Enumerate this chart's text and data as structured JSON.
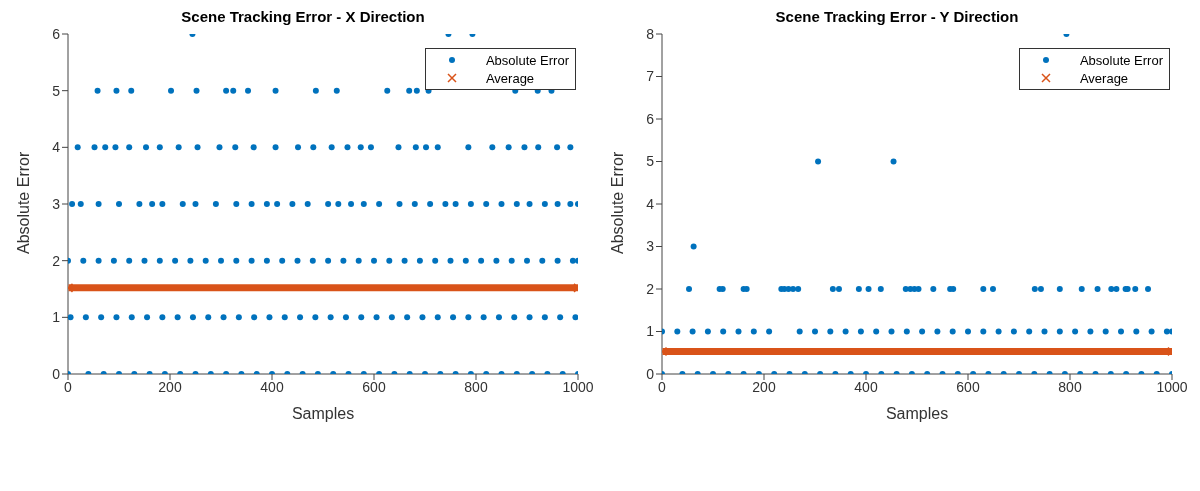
{
  "chart_data": [
    {
      "type": "scatter",
      "title": "Scene Tracking Error - X Direction",
      "xlabel": "Samples",
      "ylabel": "Absolute Error",
      "xlim": [
        0,
        1000
      ],
      "xticks": [
        0,
        200,
        400,
        600,
        800,
        1000
      ],
      "ylim": [
        0,
        6
      ],
      "yticks": [
        0,
        1,
        2,
        3,
        4,
        5,
        6
      ],
      "grid": false,
      "legend": "top right",
      "series": [
        {
          "name": "Absolute Error",
          "color": "#0072bd",
          "marker": "circle",
          "x": [
            244,
            746,
            793,
            58,
            95,
            124,
            202,
            252,
            310,
            324,
            353,
            407,
            486,
            527,
            626,
            669,
            684,
            707,
            877,
            921,
            948,
            19,
            52,
            73,
            93,
            120,
            153,
            180,
            217,
            254,
            297,
            328,
            364,
            407,
            451,
            481,
            517,
            548,
            574,
            594,
            648,
            682,
            702,
            725,
            785,
            832,
            864,
            895,
            922,
            959,
            985,
            8,
            25,
            60,
            100,
            140,
            165,
            185,
            225,
            250,
            290,
            330,
            360,
            390,
            410,
            440,
            470,
            510,
            530,
            555,
            580,
            610,
            650,
            680,
            710,
            740,
            760,
            790,
            820,
            850,
            880,
            905,
            935,
            960,
            985,
            1000,
            0,
            30,
            60,
            90,
            120,
            150,
            180,
            210,
            240,
            270,
            300,
            330,
            360,
            390,
            420,
            450,
            480,
            510,
            540,
            570,
            600,
            630,
            660,
            690,
            720,
            750,
            780,
            810,
            840,
            870,
            900,
            930,
            960,
            990,
            1000,
            5,
            35,
            65,
            95,
            125,
            155,
            185,
            215,
            245,
            275,
            305,
            335,
            365,
            395,
            425,
            455,
            485,
            515,
            545,
            575,
            605,
            635,
            665,
            695,
            725,
            755,
            785,
            815,
            845,
            875,
            905,
            935,
            965,
            995,
            0,
            40,
            70,
            100,
            130,
            160,
            190,
            220,
            250,
            280,
            310,
            340,
            370,
            400,
            430,
            460,
            490,
            520,
            550,
            580,
            610,
            640,
            670,
            700,
            730,
            760,
            790,
            820,
            850,
            880,
            910,
            940,
            970,
            1000
          ],
          "values": [
            6,
            6,
            6,
            5,
            5,
            5,
            5,
            5,
            5,
            5,
            5,
            5,
            5,
            5,
            5,
            5,
            5,
            5,
            5,
            5,
            5,
            4,
            4,
            4,
            4,
            4,
            4,
            4,
            4,
            4,
            4,
            4,
            4,
            4,
            4,
            4,
            4,
            4,
            4,
            4,
            4,
            4,
            4,
            4,
            4,
            4,
            4,
            4,
            4,
            4,
            4,
            3,
            3,
            3,
            3,
            3,
            3,
            3,
            3,
            3,
            3,
            3,
            3,
            3,
            3,
            3,
            3,
            3,
            3,
            3,
            3,
            3,
            3,
            3,
            3,
            3,
            3,
            3,
            3,
            3,
            3,
            3,
            3,
            3,
            3,
            3,
            2,
            2,
            2,
            2,
            2,
            2,
            2,
            2,
            2,
            2,
            2,
            2,
            2,
            2,
            2,
            2,
            2,
            2,
            2,
            2,
            2,
            2,
            2,
            2,
            2,
            2,
            2,
            2,
            2,
            2,
            2,
            2,
            2,
            2,
            2,
            1,
            1,
            1,
            1,
            1,
            1,
            1,
            1,
            1,
            1,
            1,
            1,
            1,
            1,
            1,
            1,
            1,
            1,
            1,
            1,
            1,
            1,
            1,
            1,
            1,
            1,
            1,
            1,
            1,
            1,
            1,
            1,
            1,
            1,
            0,
            0,
            0,
            0,
            0,
            0,
            0,
            0,
            0,
            0,
            0,
            0,
            0,
            0,
            0,
            0,
            0,
            0,
            0,
            0,
            0,
            0,
            0,
            0,
            0,
            0,
            0,
            0,
            0,
            0,
            0,
            0,
            0,
            0
          ]
        },
        {
          "name": "Average",
          "color": "#d95319",
          "type": "line",
          "marker": "cross",
          "line_style": "solid",
          "x": [
            1,
            1000
          ],
          "values": [
            1.52,
            1.52
          ]
        }
      ]
    },
    {
      "type": "scatter",
      "title": "Scene Tracking Error - Y Direction",
      "xlabel": "Samples",
      "ylabel": "Absolute Error",
      "xlim": [
        0,
        1000
      ],
      "xticks": [
        0,
        200,
        400,
        600,
        800,
        1000
      ],
      "ylim": [
        0,
        8
      ],
      "yticks": [
        0,
        1,
        2,
        3,
        4,
        5,
        6,
        7,
        8
      ],
      "grid": false,
      "legend": "top right",
      "series": [
        {
          "name": "Absolute Error",
          "color": "#0072bd",
          "marker": "circle",
          "x": [
            793,
            306,
            454,
            62,
            53,
            113,
            119,
            160,
            166,
            234,
            240,
            248,
            257,
            267,
            335,
            347,
            386,
            405,
            429,
            478,
            487,
            495,
            503,
            532,
            565,
            571,
            630,
            649,
            731,
            743,
            780,
            823,
            854,
            881,
            891,
            909,
            913,
            928,
            953,
            0,
            30,
            60,
            90,
            120,
            150,
            180,
            210,
            270,
            300,
            330,
            360,
            390,
            420,
            450,
            480,
            510,
            540,
            570,
            600,
            630,
            660,
            690,
            720,
            750,
            780,
            810,
            840,
            870,
            900,
            930,
            960,
            990,
            1000,
            0,
            40,
            70,
            100,
            130,
            160,
            190,
            220,
            250,
            280,
            310,
            340,
            370,
            400,
            430,
            460,
            490,
            520,
            550,
            580,
            610,
            640,
            670,
            700,
            730,
            760,
            790,
            820,
            850,
            880,
            910,
            940,
            970,
            1000
          ],
          "values": [
            8,
            5,
            5,
            3,
            2,
            2,
            2,
            2,
            2,
            2,
            2,
            2,
            2,
            2,
            2,
            2,
            2,
            2,
            2,
            2,
            2,
            2,
            2,
            2,
            2,
            2,
            2,
            2,
            2,
            2,
            2,
            2,
            2,
            2,
            2,
            2,
            2,
            2,
            2,
            1,
            1,
            1,
            1,
            1,
            1,
            1,
            1,
            1,
            1,
            1,
            1,
            1,
            1,
            1,
            1,
            1,
            1,
            1,
            1,
            1,
            1,
            1,
            1,
            1,
            1,
            1,
            1,
            1,
            1,
            1,
            1,
            1,
            1,
            0,
            0,
            0,
            0,
            0,
            0,
            0,
            0,
            0,
            0,
            0,
            0,
            0,
            0,
            0,
            0,
            0,
            0,
            0,
            0,
            0,
            0,
            0,
            0,
            0,
            0,
            0,
            0,
            0,
            0,
            0,
            0,
            0,
            0
          ]
        },
        {
          "name": "Average",
          "color": "#d95319",
          "type": "line",
          "marker": "cross",
          "line_style": "solid",
          "x": [
            1,
            1000
          ],
          "values": [
            0.53,
            0.53
          ]
        }
      ]
    }
  ]
}
